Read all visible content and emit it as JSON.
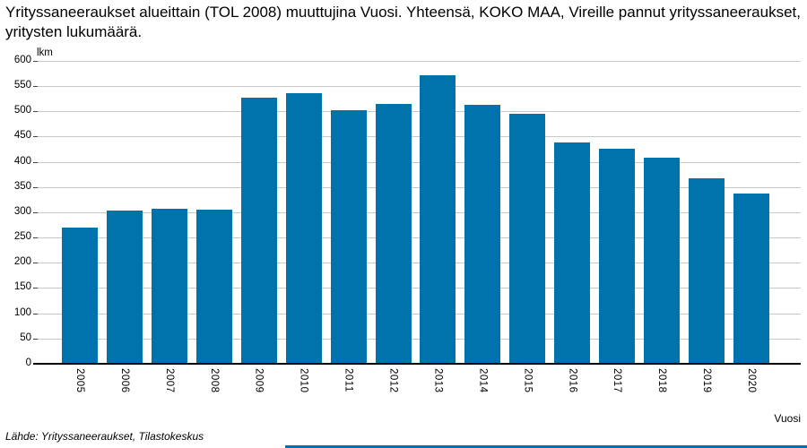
{
  "title": "Yrityssaneeraukset alueittain (TOL 2008) muuttujina Vuosi. Yhteensä, KOKO MAA, Vireille pannut yrityssaneeraukset, yritysten lukumäärä.",
  "source_note": "Lähde: Yrityssaneeraukset, Tilastokeskus",
  "colors": {
    "bar": "#0073AC",
    "gridline": "#C9C9C9",
    "axis": "#000000",
    "background": "#FFFFFF",
    "bottom_scrollbar": "#0073AC"
  },
  "chart_data": {
    "type": "bar",
    "title": "Yrityssaneeraukset alueittain (TOL 2008) muuttujina Vuosi. Yhteensä, KOKO MAA, Vireille pannut yrityssaneeraukset, yritysten lukumäärä.",
    "categories": [
      "2005",
      "2006",
      "2007",
      "2008",
      "2009",
      "2010",
      "2011",
      "2012",
      "2013",
      "2014",
      "2015",
      "2016",
      "2017",
      "2018",
      "2019",
      "2020"
    ],
    "values": [
      269,
      303,
      307,
      305,
      528,
      536,
      503,
      515,
      572,
      513,
      496,
      439,
      426,
      408,
      368,
      337
    ],
    "xlabel": "Vuosi",
    "ylabel": "lkm",
    "ylim": [
      0,
      600
    ],
    "ytick_step": 50,
    "yticks": [
      0,
      50,
      100,
      150,
      200,
      250,
      300,
      350,
      400,
      450,
      500,
      550,
      600
    ],
    "grid": true,
    "legend_position": "none",
    "x_tick_rotation_deg": 90
  }
}
